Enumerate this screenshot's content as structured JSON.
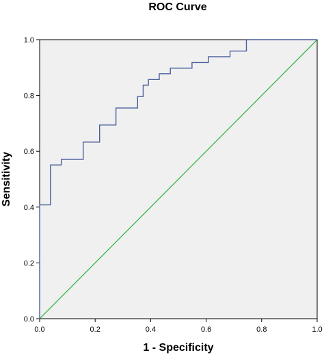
{
  "chart_data": {
    "type": "line",
    "title": "ROC Curve",
    "xlabel": "1 - Specificity",
    "ylabel": "Sensitivity",
    "xlim": [
      0,
      1
    ],
    "ylim": [
      0,
      1
    ],
    "x_ticks": [
      "0.0",
      "0.2",
      "0.4",
      "0.6",
      "0.8",
      "1.0"
    ],
    "y_ticks": [
      "0.0",
      "0.2",
      "0.4",
      "0.6",
      "0.8",
      "1.0"
    ],
    "grid": false,
    "legend": "none",
    "series": [
      {
        "color": "#4a5f9e",
        "points": [
          [
            0.0,
            0.0
          ],
          [
            0.0,
            0.408
          ],
          [
            0.039,
            0.408
          ],
          [
            0.039,
            0.551
          ],
          [
            0.078,
            0.551
          ],
          [
            0.078,
            0.571
          ],
          [
            0.157,
            0.571
          ],
          [
            0.157,
            0.633
          ],
          [
            0.216,
            0.633
          ],
          [
            0.216,
            0.694
          ],
          [
            0.275,
            0.694
          ],
          [
            0.275,
            0.755
          ],
          [
            0.353,
            0.755
          ],
          [
            0.353,
            0.796
          ],
          [
            0.373,
            0.796
          ],
          [
            0.373,
            0.837
          ],
          [
            0.392,
            0.837
          ],
          [
            0.392,
            0.857
          ],
          [
            0.431,
            0.857
          ],
          [
            0.431,
            0.878
          ],
          [
            0.471,
            0.878
          ],
          [
            0.471,
            0.898
          ],
          [
            0.549,
            0.898
          ],
          [
            0.549,
            0.918
          ],
          [
            0.608,
            0.918
          ],
          [
            0.608,
            0.939
          ],
          [
            0.686,
            0.939
          ],
          [
            0.686,
            0.959
          ],
          [
            0.745,
            0.959
          ],
          [
            0.745,
            1.0
          ],
          [
            1.0,
            1.0
          ]
        ]
      },
      {
        "color": "#3cb44b",
        "points": [
          [
            0,
            0
          ],
          [
            1,
            1
          ]
        ]
      }
    ],
    "plot_background": "#f0f0f0",
    "axis_color": "#000000"
  }
}
